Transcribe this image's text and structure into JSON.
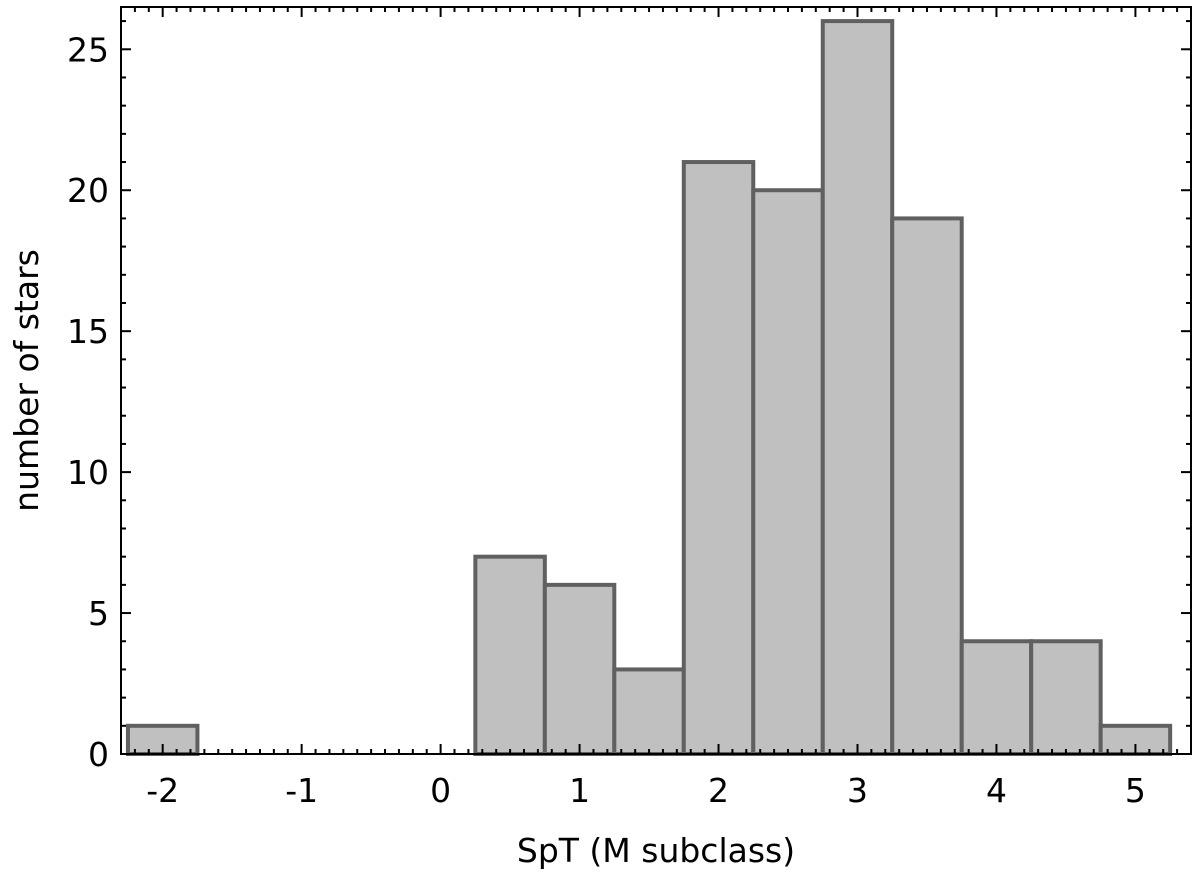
{
  "chart_data": {
    "type": "bar",
    "title": "",
    "xlabel": "SpT (M subclass)",
    "ylabel": "number of stars",
    "xlim": [
      -2.3,
      5.4
    ],
    "ylim": [
      0,
      26.5
    ],
    "grid": false,
    "bar_color": "#c0c0c0",
    "edge_color": "#606060",
    "bin_width": 0.5,
    "bin_centers": [
      -2,
      -1.5,
      -1,
      -0.5,
      0,
      0.5,
      1,
      1.5,
      2,
      2.5,
      3,
      3.5,
      4,
      4.5,
      5
    ],
    "values": [
      1,
      0,
      0,
      0,
      0,
      7,
      6,
      3,
      21,
      20,
      26,
      19,
      4,
      4,
      1
    ],
    "xticks": [
      -2,
      -1,
      0,
      1,
      2,
      3,
      4,
      5
    ],
    "xtick_labels": [
      "-2",
      "-1",
      "0",
      "1",
      "2",
      "3",
      "4",
      "5"
    ],
    "yticks": [
      0,
      5,
      10,
      15,
      20,
      25
    ],
    "ytick_labels": [
      "0",
      "5",
      "10",
      "15",
      "20",
      "25"
    ]
  }
}
